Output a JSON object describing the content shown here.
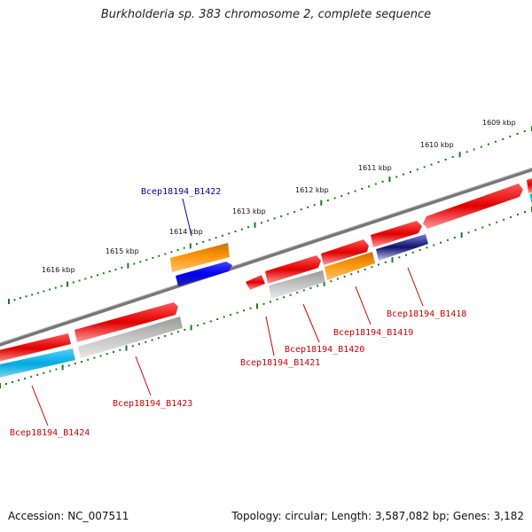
{
  "title": "Burkholderia sp. 383 chromosome 2, complete sequence",
  "footer": {
    "accession": "Accession: NC_007511",
    "summary": "Topology: circular; Length: 3,587,082 bp; Genes: 3,182"
  },
  "colors": {
    "backbone": "#888888",
    "tick": "#1a7a1a",
    "label_red": "#cc0000",
    "label_blue": "#0000aa"
  },
  "scale_labels": [
    "1609 kbp",
    "1610 kbp",
    "1611 kbp",
    "1612 kbp",
    "1613 kbp",
    "1614 kbp",
    "1615 kbp",
    "1616 kbp"
  ],
  "genes": [
    {
      "id": "Bcep18194_B1418",
      "color": "#2b2bd0"
    },
    {
      "id": "Bcep18194_B1419",
      "color": "#ff8c00"
    },
    {
      "id": "Bcep18194_B1420",
      "color": "#bbbbbb"
    },
    {
      "id": "Bcep18194_B1421",
      "color": "#ee0000"
    },
    {
      "id": "Bcep18194_B1422",
      "color": "#0000ee"
    },
    {
      "id": "Bcep18194_B1423",
      "color": "#bbbbbb"
    },
    {
      "id": "Bcep18194_B1424",
      "color": "#00aadd"
    }
  ]
}
